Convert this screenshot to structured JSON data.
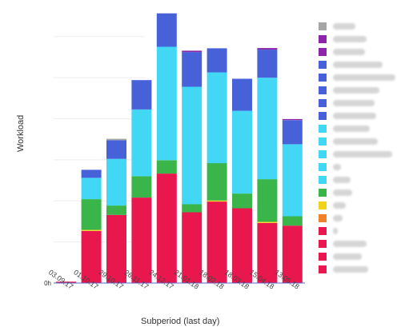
{
  "chart_data": {
    "type": "bar",
    "stacked": true,
    "title": "",
    "xlabel": "Subperiod (last day)",
    "ylabel": "Workload",
    "y_tick_labels": [
      "0h"
    ],
    "ylim": [
      0,
      100
    ],
    "grid": true,
    "legend_placement": "right",
    "legend_labels_blurred": true,
    "categories": [
      "03.09.17",
      "01.10.17",
      "29.10.17",
      "26.11.17",
      "24.12.17",
      "21.01.18",
      "18.02.18",
      "18.03.18",
      "15.04.18",
      "13.05.18"
    ],
    "series": [
      {
        "color": "#e8174e",
        "values": [
          0.5,
          19.5,
          25.5,
          32,
          41,
          26.5,
          30.5,
          28,
          22.5,
          21.5
        ]
      },
      {
        "color": "#e8174e",
        "values": [
          0,
          0,
          0,
          0,
          0,
          0,
          0,
          0,
          0,
          0
        ]
      },
      {
        "color": "#e8174e",
        "values": [
          0,
          0,
          0,
          0,
          0,
          0,
          0,
          0,
          0,
          0
        ]
      },
      {
        "color": "#e8174e",
        "values": [
          0,
          0,
          0,
          0,
          0,
          0,
          0,
          0,
          0,
          0
        ]
      },
      {
        "color": "#f0822a",
        "values": [
          0,
          0,
          0,
          0,
          0,
          0,
          0,
          0,
          0,
          0
        ]
      },
      {
        "color": "#f2d21b",
        "values": [
          0,
          0.4,
          0,
          0,
          0,
          0,
          0.4,
          0,
          0.4,
          0
        ]
      },
      {
        "color": "#39b54a",
        "values": [
          0,
          11.5,
          3.5,
          8,
          5,
          3,
          14,
          5.5,
          16,
          3.5
        ]
      },
      {
        "color": "#42d7f5",
        "values": [
          0,
          0,
          0,
          0,
          0,
          0,
          0,
          0,
          0,
          0
        ]
      },
      {
        "color": "#42d7f5",
        "values": [
          0,
          0,
          0,
          0,
          0,
          0,
          0,
          0,
          0,
          0
        ]
      },
      {
        "color": "#42d7f5",
        "values": [
          0,
          0,
          0,
          0,
          0,
          0,
          0,
          0,
          0,
          0
        ]
      },
      {
        "color": "#42d7f5",
        "values": [
          0,
          0,
          0,
          0,
          0,
          0,
          0,
          0,
          0,
          0
        ]
      },
      {
        "color": "#42d7f5",
        "values": [
          0,
          8,
          17.5,
          25,
          42.5,
          44,
          34,
          31,
          38,
          27
        ]
      },
      {
        "color": "#4761d8",
        "values": [
          0,
          0,
          0,
          0,
          0,
          0,
          0,
          0,
          0,
          0
        ]
      },
      {
        "color": "#4761d8",
        "values": [
          0,
          0,
          0,
          0,
          0,
          0,
          0,
          0,
          0,
          0
        ]
      },
      {
        "color": "#4761d8",
        "values": [
          0,
          0,
          0,
          0,
          0,
          0,
          0,
          0,
          0,
          0
        ]
      },
      {
        "color": "#4761d8",
        "values": [
          0,
          0,
          0,
          0,
          0,
          0,
          0,
          0,
          0,
          0
        ]
      },
      {
        "color": "#4761d8",
        "values": [
          0,
          3,
          7,
          11,
          12.5,
          13,
          9,
          12,
          10.5,
          9
        ]
      },
      {
        "color": "#8e24aa",
        "values": [
          0,
          0,
          0,
          0,
          0,
          0.5,
          0,
          0,
          0.6,
          0.4
        ]
      },
      {
        "color": "#8e24aa",
        "values": [
          0,
          0,
          0,
          0,
          0,
          0,
          0,
          0,
          0,
          0
        ]
      },
      {
        "color": "#a6a6a6",
        "values": [
          0,
          0,
          0.5,
          0,
          0,
          0,
          0,
          0,
          0,
          0
        ]
      }
    ]
  }
}
